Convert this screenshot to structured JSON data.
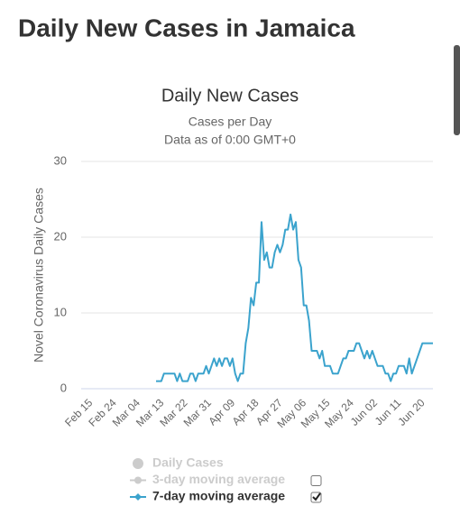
{
  "page_title": "Daily New Cases in Jamaica",
  "chart_data": {
    "type": "line",
    "title": "Daily New Cases",
    "subtitle": [
      "Cases per Day",
      "Data as of 0:00 GMT+0"
    ],
    "ylabel": "Novel Coronavirus Daily Cases",
    "categories": [
      "Feb 15",
      null,
      null,
      null,
      null,
      null,
      null,
      null,
      null,
      "Feb 24",
      null,
      null,
      null,
      null,
      null,
      null,
      null,
      null,
      "Mar 04",
      null,
      null,
      null,
      null,
      null,
      null,
      null,
      null,
      "Mar 13",
      null,
      null,
      null,
      null,
      null,
      null,
      null,
      null,
      "Mar 22",
      null,
      null,
      null,
      null,
      null,
      null,
      null,
      null,
      "Mar 31",
      null,
      null,
      null,
      null,
      null,
      null,
      null,
      null,
      "Apr 09",
      null,
      null,
      null,
      null,
      null,
      null,
      null,
      null,
      "Apr 18",
      null,
      null,
      null,
      null,
      null,
      null,
      null,
      null,
      "Apr 27",
      null,
      null,
      null,
      null,
      null,
      null,
      null,
      null,
      "May 06",
      null,
      null,
      null,
      null,
      null,
      null,
      null,
      null,
      "May 15",
      null,
      null,
      null,
      null,
      null,
      null,
      null,
      null,
      "May 24",
      null,
      null,
      null,
      null,
      null,
      null,
      null,
      null,
      "Jun 02",
      null,
      null,
      null,
      null,
      null,
      null,
      null,
      null,
      "Jun 11",
      null,
      null,
      null,
      null,
      null,
      null,
      null,
      null,
      "Jun 20",
      null,
      null,
      null,
      null,
      null
    ],
    "series": [
      {
        "name": "7-day moving average",
        "color": "#3ba3cd",
        "values": [
          null,
          null,
          null,
          null,
          null,
          null,
          null,
          null,
          null,
          null,
          null,
          null,
          null,
          null,
          null,
          null,
          null,
          null,
          null,
          null,
          null,
          null,
          null,
          null,
          null,
          null,
          1,
          1,
          1,
          2,
          2,
          2,
          2,
          2,
          1,
          2,
          1,
          1,
          1,
          2,
          2,
          1,
          2,
          2,
          2,
          3,
          2,
          3,
          4,
          3,
          4,
          3,
          4,
          4,
          3,
          4,
          2,
          1,
          2,
          2,
          6,
          8,
          12,
          11,
          14,
          14,
          22,
          17,
          18,
          16,
          16,
          18,
          19,
          18,
          19,
          21,
          21,
          23,
          21,
          22,
          17,
          16,
          11,
          11,
          9,
          5,
          5,
          5,
          4,
          5,
          3,
          3,
          3,
          2,
          2,
          2,
          3,
          4,
          4,
          5,
          5,
          5,
          6,
          6,
          5,
          4,
          5,
          4,
          5,
          4,
          3,
          3,
          3,
          2,
          2,
          1,
          2,
          2,
          3,
          3,
          3,
          2,
          4,
          2,
          3,
          4,
          5,
          6,
          6,
          6,
          6,
          6
        ]
      }
    ],
    "legend_items": [
      {
        "name": "Daily Cases",
        "color": "#cccccc",
        "checkbox": null
      },
      {
        "name": "3-day moving average",
        "color": "#cccccc",
        "checkbox": false
      },
      {
        "name": "7-day moving average",
        "color": "#3ba3cd",
        "checkbox": true
      }
    ],
    "ylim": [
      0,
      30
    ],
    "yticks": [
      0,
      10,
      20,
      30
    ],
    "grid": true
  }
}
